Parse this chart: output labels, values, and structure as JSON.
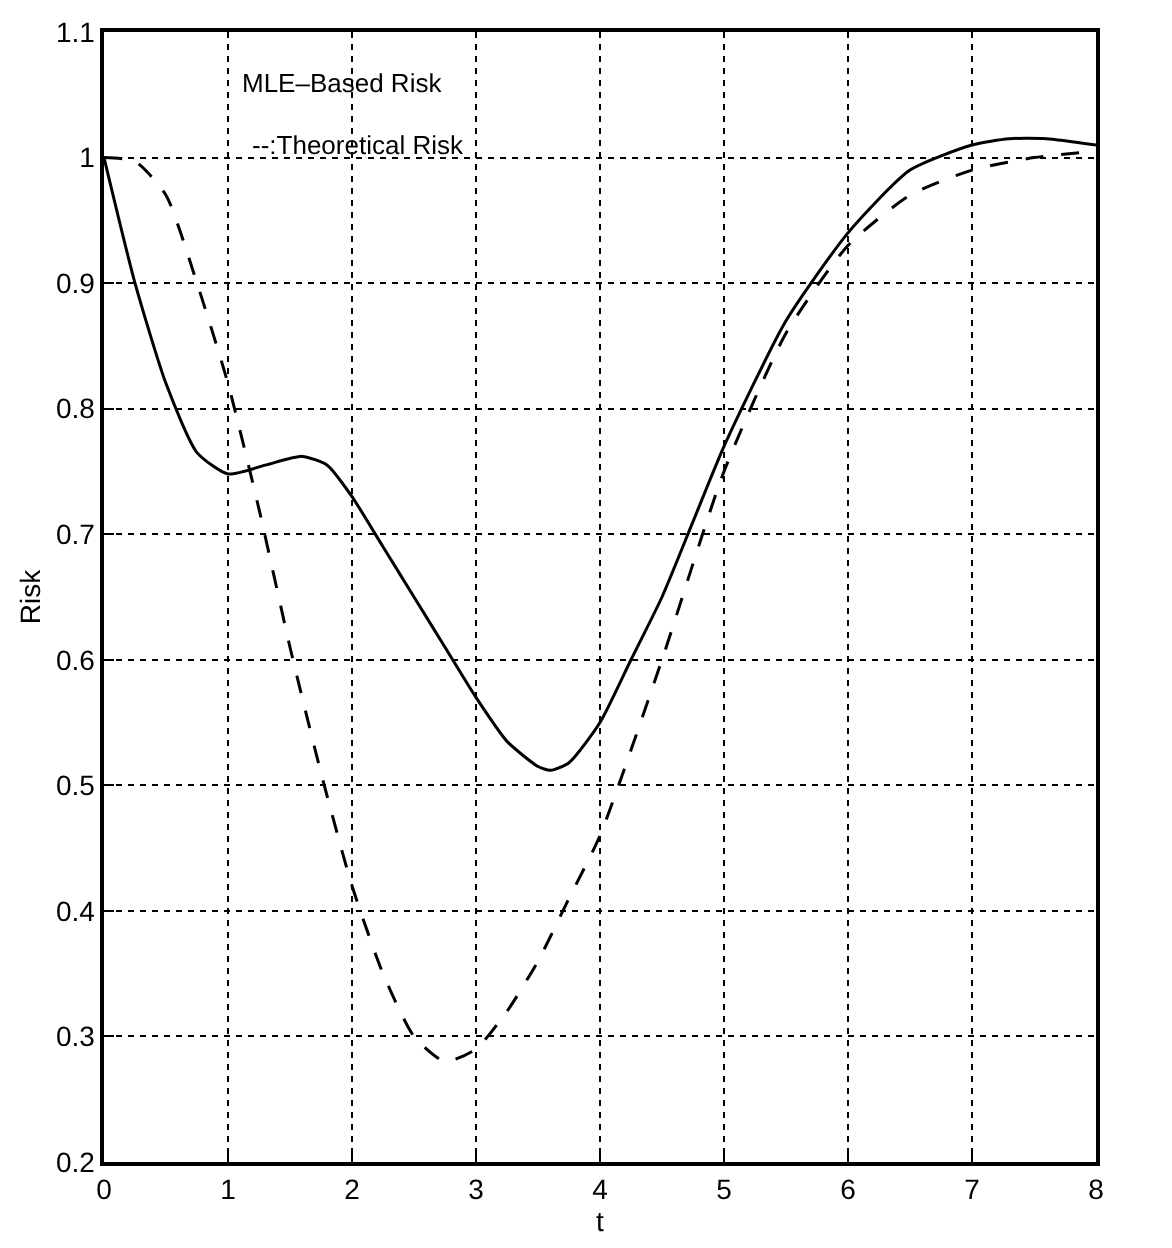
{
  "chart_data": {
    "type": "line",
    "xlabel": "t",
    "ylabel": "Risk",
    "annotations": [
      "MLE–Based Risk",
      "--:Theoretical Risk"
    ],
    "xlim": [
      0,
      8
    ],
    "ylim": [
      0.2,
      1.1
    ],
    "xticks": [
      0,
      1,
      2,
      3,
      4,
      5,
      6,
      7,
      8
    ],
    "yticks": [
      0.2,
      0.3,
      0.4,
      0.5,
      0.6,
      0.7,
      0.8,
      0.9,
      1,
      1.1
    ],
    "grid": true,
    "marker": "none",
    "series": [
      {
        "color": "#000000",
        "line_style": "solid",
        "x": [
          0,
          0.25,
          0.5,
          0.75,
          1,
          1.3,
          1.6,
          1.8,
          2,
          2.25,
          2.5,
          2.75,
          3,
          3.25,
          3.5,
          3.6,
          3.75,
          4,
          4.25,
          4.5,
          4.75,
          5,
          5.5,
          6,
          6.5,
          7,
          7.3,
          7.6,
          8
        ],
        "values": [
          1.0,
          0.9,
          0.82,
          0.765,
          0.748,
          0.755,
          0.762,
          0.755,
          0.73,
          0.69,
          0.65,
          0.61,
          0.57,
          0.535,
          0.515,
          0.512,
          0.518,
          0.55,
          0.6,
          0.65,
          0.71,
          0.77,
          0.87,
          0.94,
          0.99,
          1.01,
          1.015,
          1.015,
          1.01
        ]
      },
      {
        "color": "#000000",
        "line_style": "dashed",
        "x": [
          0,
          0.25,
          0.5,
          0.75,
          1,
          1.25,
          1.5,
          1.75,
          2,
          2.25,
          2.5,
          2.75,
          3,
          3.25,
          3.5,
          3.75,
          4,
          4.5,
          5,
          5.5,
          6,
          6.5,
          7,
          7.5,
          8
        ],
        "values": [
          1.0,
          0.997,
          0.97,
          0.9,
          0.82,
          0.72,
          0.61,
          0.51,
          0.42,
          0.35,
          0.3,
          0.28,
          0.29,
          0.32,
          0.36,
          0.41,
          0.46,
          0.6,
          0.75,
          0.86,
          0.93,
          0.97,
          0.99,
          1.0,
          1.005
        ]
      }
    ]
  }
}
